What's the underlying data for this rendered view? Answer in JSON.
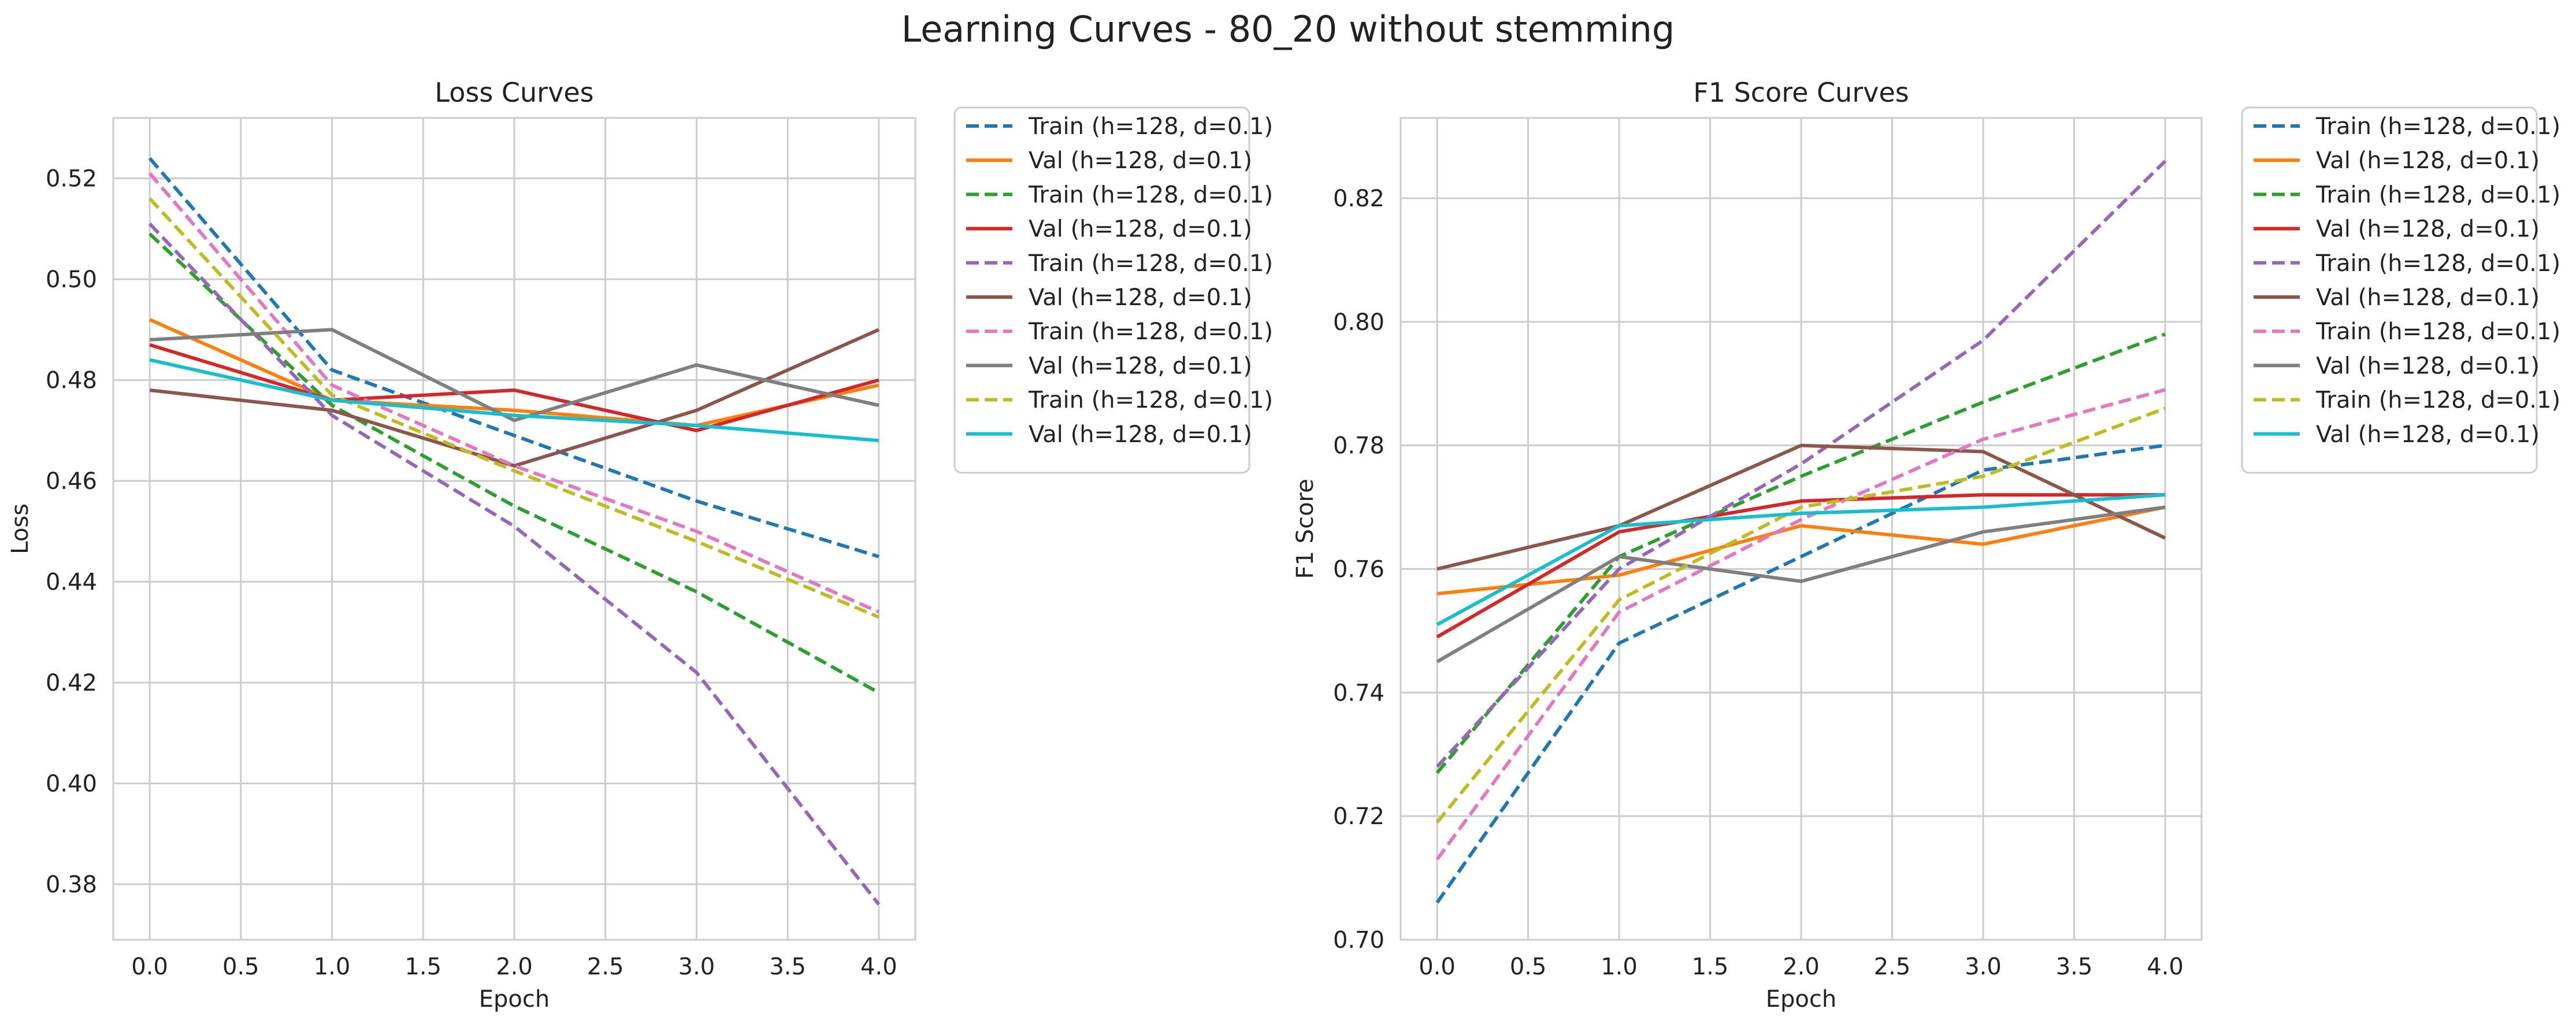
{
  "figure": {
    "suptitle": "Learning Curves - 80_20 without stemming"
  },
  "colors": {
    "tab:blue": "#1f77b4",
    "tab:orange": "#ff7f0e",
    "tab:green": "#2ca02c",
    "tab:red": "#d62728",
    "tab:purple": "#9467bd",
    "tab:brown": "#8c564b",
    "tab:pink": "#e377c2",
    "tab:gray": "#7f7f7f",
    "tab:olive": "#bcbd22",
    "tab:cyan": "#17becf",
    "grid": "#cccccc",
    "axes_edge": "#cccccc"
  },
  "chart_data": [
    {
      "type": "line",
      "title": "Loss Curves",
      "xlabel": "Epoch",
      "ylabel": "Loss",
      "x": [
        0,
        1,
        2,
        3,
        4
      ],
      "xlim": [
        -0.2,
        4.2
      ],
      "ylim": [
        0.369,
        0.532
      ],
      "xticks": [
        0,
        0.5,
        1,
        1.5,
        2,
        2.5,
        3,
        3.5,
        4
      ],
      "xtick_labels": [
        "0.0",
        "0.5",
        "1.0",
        "1.5",
        "2.0",
        "2.5",
        "3.0",
        "3.5",
        "4.0"
      ],
      "yticks": [
        0.38,
        0.4,
        0.42,
        0.44,
        0.46,
        0.48,
        0.5,
        0.52
      ],
      "ytick_labels": [
        "0.38",
        "0.40",
        "0.42",
        "0.44",
        "0.46",
        "0.48",
        "0.50",
        "0.52"
      ],
      "grid": true,
      "legend_placement": "outside-top-right",
      "series": [
        {
          "name": "Train (h=128, d=0.1)",
          "color": "#1f77b4",
          "style": "dashed",
          "values": [
            0.524,
            0.482,
            0.469,
            0.456,
            0.445
          ]
        },
        {
          "name": "Val (h=128, d=0.1)",
          "color": "#ff7f0e",
          "style": "solid",
          "values": [
            0.492,
            0.476,
            0.474,
            0.471,
            0.479
          ]
        },
        {
          "name": "Train (h=128, d=0.1)",
          "color": "#2ca02c",
          "style": "dashed",
          "values": [
            0.509,
            0.475,
            0.455,
            0.438,
            0.418
          ]
        },
        {
          "name": "Val (h=128, d=0.1)",
          "color": "#d62728",
          "style": "solid",
          "values": [
            0.487,
            0.476,
            0.478,
            0.47,
            0.48
          ]
        },
        {
          "name": "Train (h=128, d=0.1)",
          "color": "#9467bd",
          "style": "dashed",
          "values": [
            0.511,
            0.473,
            0.451,
            0.422,
            0.376
          ]
        },
        {
          "name": "Val (h=128, d=0.1)",
          "color": "#8c564b",
          "style": "solid",
          "values": [
            0.478,
            0.474,
            0.463,
            0.474,
            0.49
          ]
        },
        {
          "name": "Train (h=128, d=0.1)",
          "color": "#e377c2",
          "style": "dashed",
          "values": [
            0.521,
            0.479,
            0.463,
            0.45,
            0.434
          ]
        },
        {
          "name": "Val (h=128, d=0.1)",
          "color": "#7f7f7f",
          "style": "solid",
          "values": [
            0.488,
            0.49,
            0.472,
            0.483,
            0.475
          ]
        },
        {
          "name": "Train (h=128, d=0.1)",
          "color": "#bcbd22",
          "style": "dashed",
          "values": [
            0.516,
            0.477,
            0.462,
            0.448,
            0.433
          ]
        },
        {
          "name": "Val (h=128, d=0.1)",
          "color": "#17becf",
          "style": "solid",
          "values": [
            0.484,
            0.476,
            0.473,
            0.471,
            0.468
          ]
        }
      ]
    },
    {
      "type": "line",
      "title": "F1 Score Curves",
      "xlabel": "Epoch",
      "ylabel": "F1 Score",
      "x": [
        0,
        1,
        2,
        3,
        4
      ],
      "xlim": [
        -0.2,
        4.2
      ],
      "ylim": [
        0.7,
        0.833
      ],
      "xticks": [
        0,
        0.5,
        1,
        1.5,
        2,
        2.5,
        3,
        3.5,
        4
      ],
      "xtick_labels": [
        "0.0",
        "0.5",
        "1.0",
        "1.5",
        "2.0",
        "2.5",
        "3.0",
        "3.5",
        "4.0"
      ],
      "yticks": [
        0.7,
        0.72,
        0.74,
        0.76,
        0.78,
        0.8,
        0.82
      ],
      "ytick_labels": [
        "0.70",
        "0.72",
        "0.74",
        "0.76",
        "0.78",
        "0.80",
        "0.82"
      ],
      "grid": true,
      "legend_placement": "outside-top-right",
      "series": [
        {
          "name": "Train (h=128, d=0.1)",
          "color": "#1f77b4",
          "style": "dashed",
          "values": [
            0.706,
            0.748,
            0.762,
            0.776,
            0.78
          ]
        },
        {
          "name": "Val (h=128, d=0.1)",
          "color": "#ff7f0e",
          "style": "solid",
          "values": [
            0.756,
            0.759,
            0.767,
            0.764,
            0.77
          ]
        },
        {
          "name": "Train (h=128, d=0.1)",
          "color": "#2ca02c",
          "style": "dashed",
          "values": [
            0.727,
            0.762,
            0.775,
            0.787,
            0.798
          ]
        },
        {
          "name": "Val (h=128, d=0.1)",
          "color": "#d62728",
          "style": "solid",
          "values": [
            0.749,
            0.766,
            0.771,
            0.772,
            0.772
          ]
        },
        {
          "name": "Train (h=128, d=0.1)",
          "color": "#9467bd",
          "style": "dashed",
          "values": [
            0.728,
            0.76,
            0.777,
            0.797,
            0.826
          ]
        },
        {
          "name": "Val (h=128, d=0.1)",
          "color": "#8c564b",
          "style": "solid",
          "values": [
            0.76,
            0.767,
            0.78,
            0.779,
            0.765
          ]
        },
        {
          "name": "Train (h=128, d=0.1)",
          "color": "#e377c2",
          "style": "dashed",
          "values": [
            0.713,
            0.753,
            0.768,
            0.781,
            0.789
          ]
        },
        {
          "name": "Val (h=128, d=0.1)",
          "color": "#7f7f7f",
          "style": "solid",
          "values": [
            0.745,
            0.762,
            0.758,
            0.766,
            0.77
          ]
        },
        {
          "name": "Train (h=128, d=0.1)",
          "color": "#bcbd22",
          "style": "dashed",
          "values": [
            0.719,
            0.755,
            0.77,
            0.775,
            0.786
          ]
        },
        {
          "name": "Val (h=128, d=0.1)",
          "color": "#17becf",
          "style": "solid",
          "values": [
            0.751,
            0.767,
            0.769,
            0.77,
            0.772
          ]
        }
      ]
    }
  ]
}
